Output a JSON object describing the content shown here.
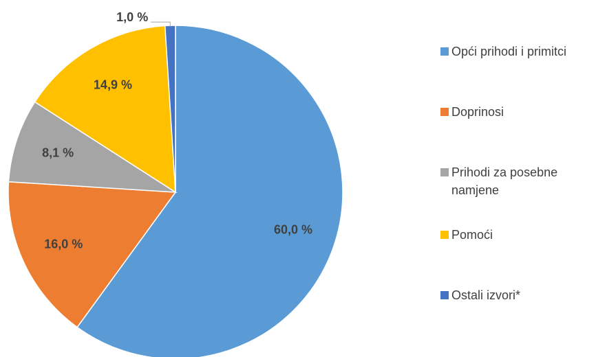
{
  "chart_data": {
    "type": "pie",
    "categories": [
      "Opći prihodi i primitci",
      "Doprinosi",
      "Prihodi za posebne namjene",
      "Pomoći",
      "Ostali izvori*"
    ],
    "values": [
      60.0,
      16.0,
      8.1,
      14.9,
      1.0
    ],
    "value_labels": [
      "60,0 %",
      "16,0 %",
      "8,1 %",
      "14,9 %",
      "1,0 %"
    ],
    "colors": [
      "#5b9bd5",
      "#ed7d31",
      "#a5a5a5",
      "#ffc000",
      "#4472c4"
    ],
    "legend": "right"
  }
}
